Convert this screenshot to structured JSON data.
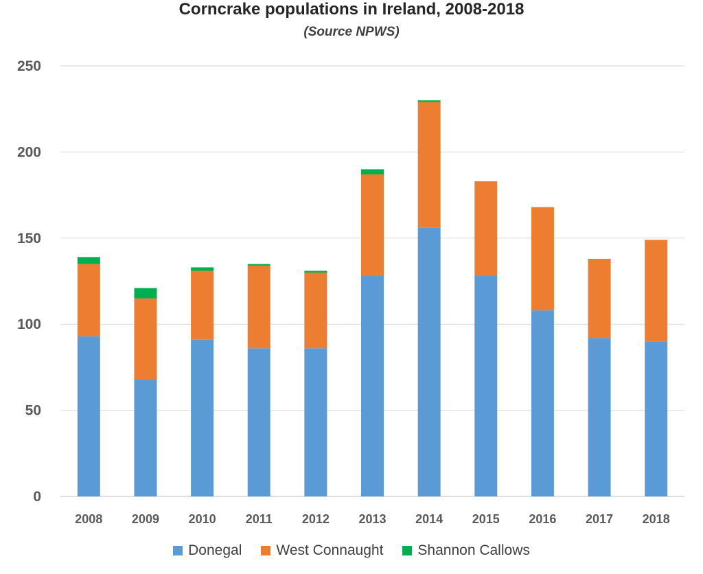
{
  "chart_data": {
    "type": "bar",
    "stacked": true,
    "title": "Corncrake populations in Ireland, 2008-2018",
    "subtitle": "(Source NPWS)",
    "xlabel": "",
    "ylabel": "",
    "ylim": [
      0,
      250
    ],
    "yticks": [
      0,
      50,
      100,
      150,
      200,
      250
    ],
    "grid": true,
    "legend_position": "bottom",
    "categories": [
      "2008",
      "2009",
      "2010",
      "2011",
      "2012",
      "2013",
      "2014",
      "2015",
      "2016",
      "2017",
      "2018"
    ],
    "series": [
      {
        "name": "Donegal",
        "color": "#5b9bd5",
        "values": [
          93,
          68,
          91,
          86,
          86,
          128,
          156,
          128,
          108,
          92,
          90
        ]
      },
      {
        "name": "West Connaught",
        "color": "#ed7d31",
        "values": [
          42,
          47,
          40,
          48,
          44,
          59,
          73,
          55,
          60,
          46,
          59
        ]
      },
      {
        "name": "Shannon Callows",
        "color": "#00b050",
        "values": [
          4,
          6,
          2,
          1,
          1,
          3,
          1,
          0,
          0,
          0,
          0
        ]
      }
    ]
  }
}
